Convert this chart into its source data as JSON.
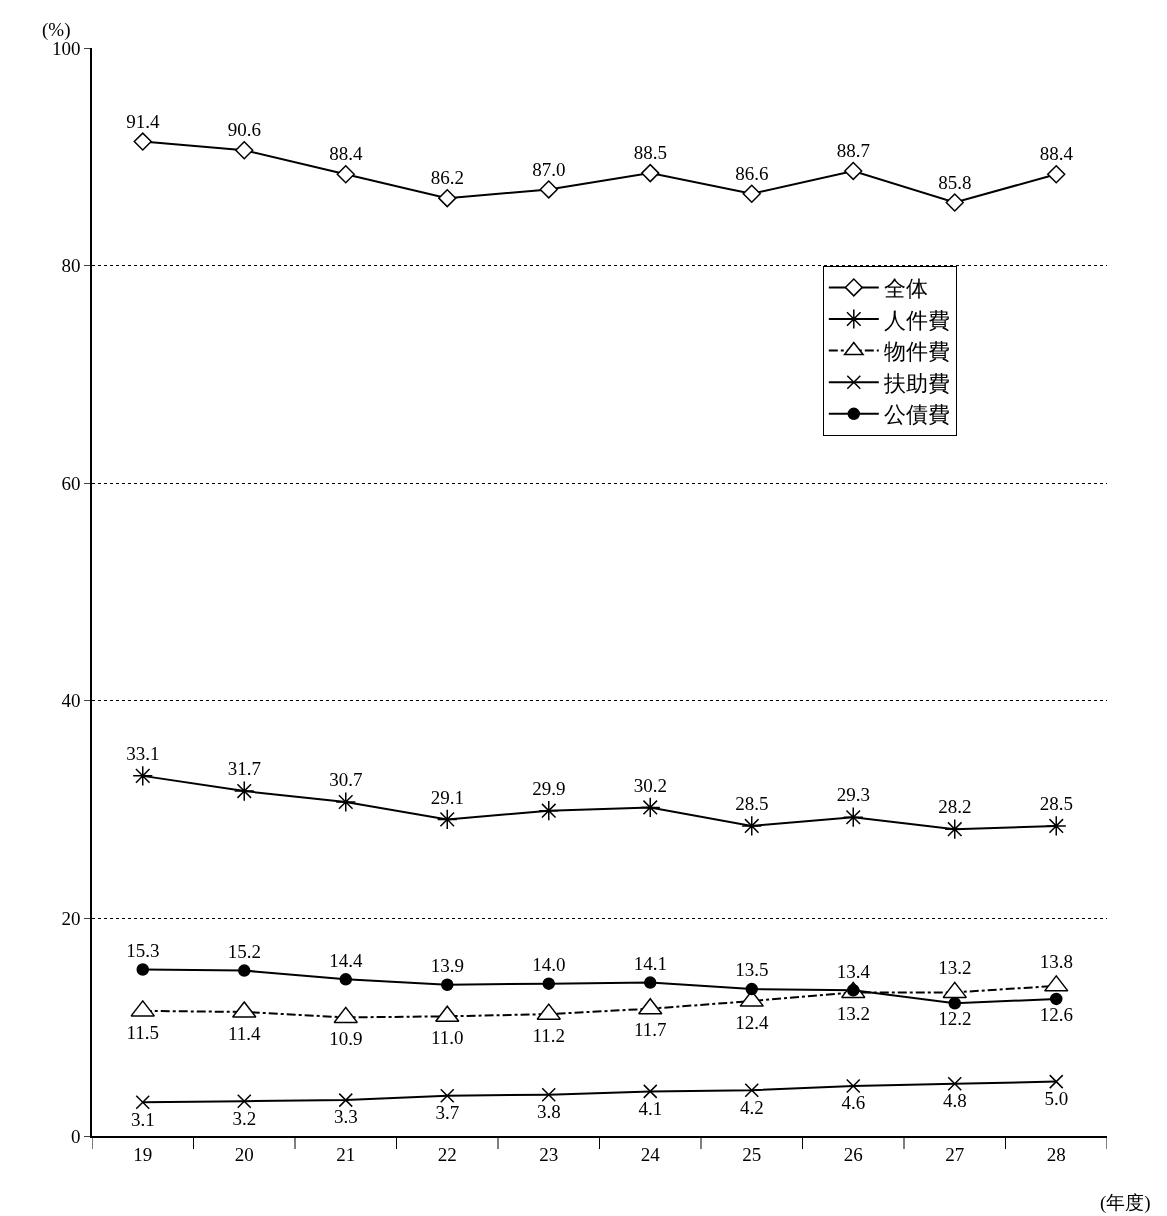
{
  "chart_data": {
    "type": "line",
    "ylabel": "(%)",
    "xlabel": "(年度)",
    "categories": [
      "19",
      "20",
      "21",
      "22",
      "23",
      "24",
      "25",
      "26",
      "27",
      "28"
    ],
    "ylim": [
      0,
      100
    ],
    "yticks": [
      0,
      20,
      40,
      60,
      80,
      100
    ],
    "grid": "y",
    "legend": "right",
    "tick_labels": "xy",
    "series": [
      {
        "name": "全体",
        "color": "#000000",
        "marker": "diamond",
        "line_style": "solid",
        "values": [
          91.4,
          90.6,
          88.4,
          86.2,
          87.0,
          88.5,
          86.6,
          88.7,
          85.8,
          88.4
        ],
        "value_labels": [
          "91.4",
          "90.6",
          "88.4",
          "86.2",
          "87.0",
          "88.5",
          "86.6",
          "88.7",
          "85.8",
          "88.4"
        ]
      },
      {
        "name": "人件費",
        "color": "#000000",
        "marker": "cross",
        "line_style": "solid",
        "values": [
          33.1,
          31.7,
          30.7,
          29.1,
          29.9,
          30.2,
          28.5,
          29.3,
          28.2,
          28.5
        ],
        "value_labels": [
          "33.1",
          "31.7",
          "30.7",
          "29.1",
          "29.9",
          "30.2",
          "28.5",
          "29.3",
          "28.2",
          "28.5"
        ]
      },
      {
        "name": "物件費",
        "color": "#000000",
        "marker": "triangle",
        "line_style": "dashed",
        "values": [
          11.5,
          11.4,
          10.9,
          11.0,
          11.2,
          11.7,
          12.4,
          13.2,
          13.2,
          13.8
        ],
        "value_labels": [
          "11.5",
          "11.4",
          "10.9",
          "11.0",
          "11.2",
          "11.7",
          "12.4",
          "13.2",
          "13.2",
          "13.8"
        ]
      },
      {
        "name": "扶助費",
        "color": "#000000",
        "marker": "cross",
        "line_style": "solid",
        "values": [
          3.1,
          3.2,
          3.3,
          3.7,
          3.8,
          4.1,
          4.2,
          4.6,
          4.8,
          5.0
        ],
        "value_labels": [
          "3.1",
          "3.2",
          "3.3",
          "3.7",
          "3.8",
          "4.1",
          "4.2",
          "4.6",
          "4.8",
          "5.0"
        ]
      },
      {
        "name": "公債費",
        "color": "#000000",
        "marker": "circle",
        "line_style": "solid",
        "values": [
          15.3,
          15.2,
          14.4,
          13.9,
          14.0,
          14.1,
          13.5,
          13.4,
          12.2,
          12.6
        ],
        "value_labels": [
          "15.3",
          "15.2",
          "14.4",
          "13.9",
          "14.0",
          "14.1",
          "13.5",
          "13.4",
          "12.2",
          "12.6"
        ]
      }
    ]
  }
}
